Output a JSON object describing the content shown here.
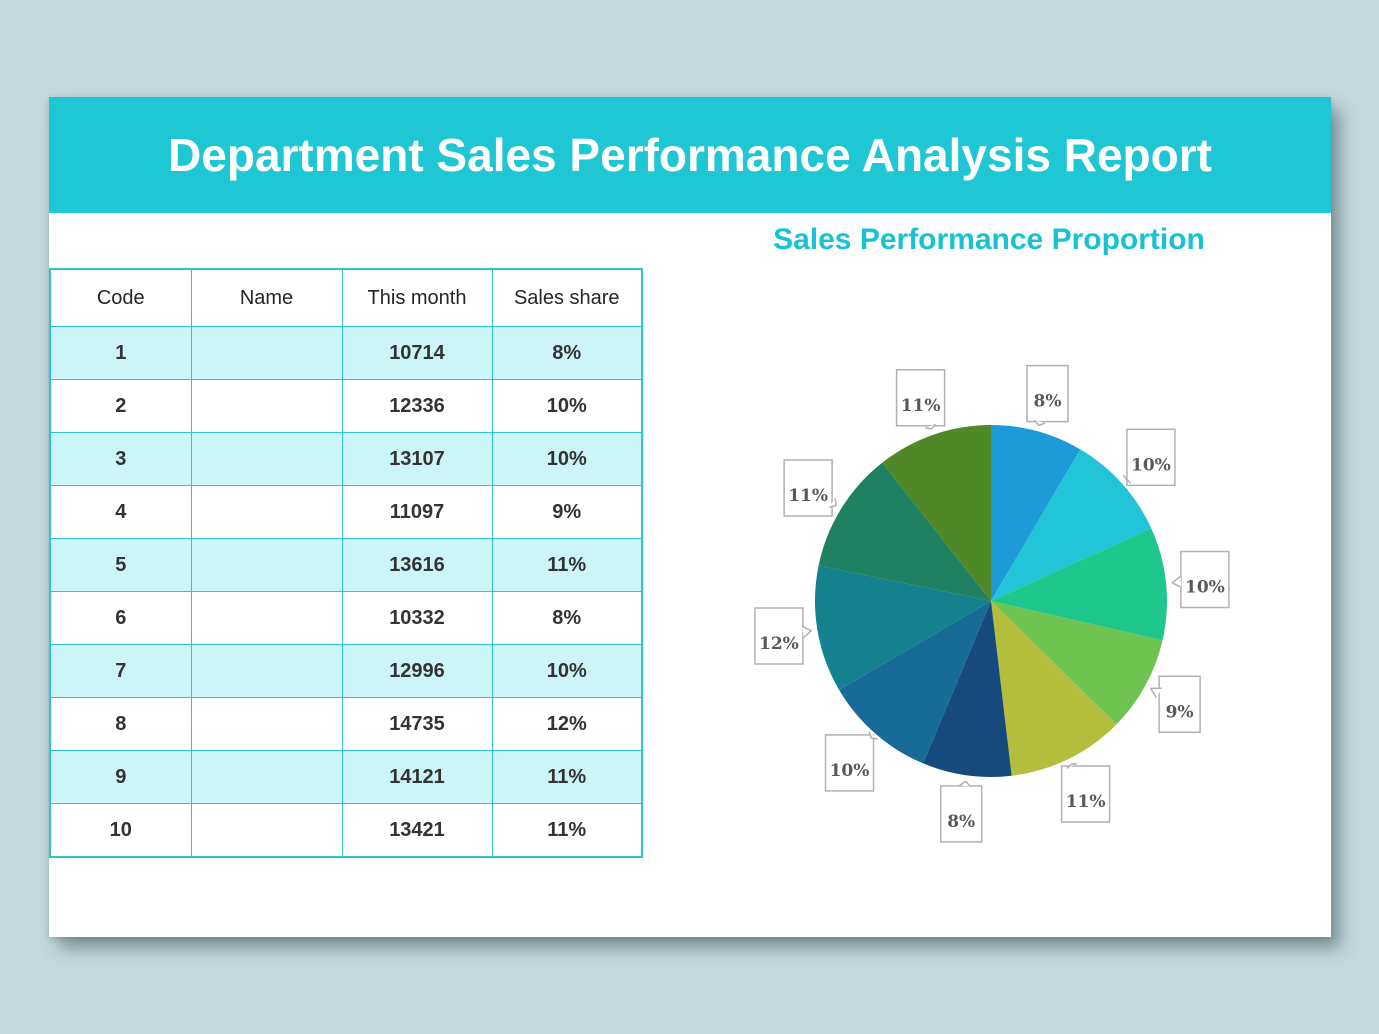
{
  "background_color": "#c5d9dd",
  "page": {
    "header": {
      "title": "Department Sales Performance Analysis Report",
      "bg_color": "#1ec7d3",
      "text_color": "#ffffff"
    }
  },
  "table": {
    "headers": [
      "Code",
      "Name",
      "This month",
      "Sales share"
    ],
    "rows": [
      [
        "1",
        "",
        "10714",
        "8%"
      ],
      [
        "2",
        "",
        "12336",
        "10%"
      ],
      [
        "3",
        "",
        "13107",
        "10%"
      ],
      [
        "4",
        "",
        "11097",
        "9%"
      ],
      [
        "5",
        "",
        "13616",
        "11%"
      ],
      [
        "6",
        "",
        "10332",
        "8%"
      ],
      [
        "7",
        "",
        "12996",
        "10%"
      ],
      [
        "8",
        "",
        "14735",
        "12%"
      ],
      [
        "9",
        "",
        "14121",
        "11%"
      ],
      [
        "10",
        "",
        "13421",
        "11%"
      ]
    ],
    "border_color": "#2ec5cf",
    "alt_row_color": "#ccf5f8"
  },
  "chart_data": {
    "type": "pie",
    "title": "Sales Performance Proportion",
    "title_color": "#18c2d4",
    "categories": [
      "1",
      "2",
      "3",
      "4",
      "5",
      "6",
      "7",
      "8",
      "9",
      "10"
    ],
    "values": [
      10714,
      12336,
      13107,
      11097,
      13616,
      10332,
      12996,
      14735,
      14121,
      13421
    ],
    "labels": [
      "8%",
      "10%",
      "10%",
      "9%",
      "11%",
      "8%",
      "10%",
      "12%",
      "11%",
      "11%"
    ],
    "colors": [
      "#1d9bd7",
      "#22c5d8",
      "#20c78c",
      "#6ec351",
      "#b4bd3c",
      "#164a7d",
      "#176b96",
      "#14818f",
      "#1f8162",
      "#4f8827"
    ],
    "start_angle_deg": 0,
    "direction": "clockwise",
    "legend_position": "none",
    "label_style": "callout",
    "label_text_color": "#595959",
    "label_box_border_color": "#b1b1b1"
  }
}
